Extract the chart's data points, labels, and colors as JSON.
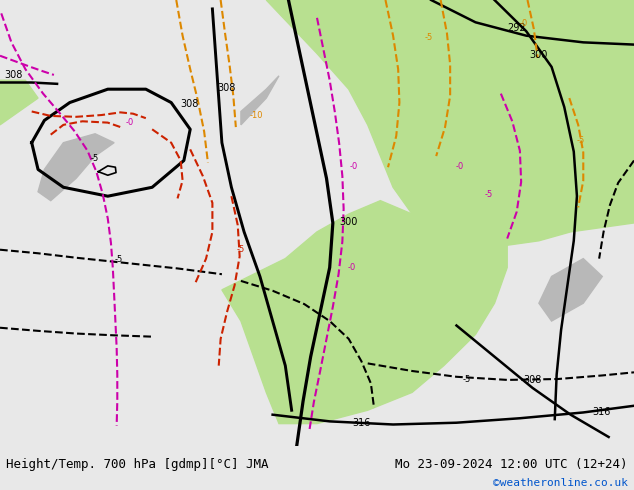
{
  "title_left": "Height/Temp. 700 hPa [gdmp][°C] JMA",
  "title_right": "Mo 23-09-2024 12:00 UTC (12+24)",
  "credit": "©weatheronline.co.uk",
  "bg_color": "#d8d8d8",
  "land_green": "#b8e090",
  "land_gray": "#b8b8b8",
  "figsize": [
    6.34,
    4.9
  ],
  "dpi": 100,
  "footer_color": "#e8e8e8",
  "black_lw": 1.8,
  "dashed_lw": 1.5,
  "label_fs": 7,
  "footer_fs": 9,
  "credit_fs": 8,
  "credit_color": "#0055cc",
  "red_color": "#cc2200",
  "orange_color": "#dd8800",
  "magenta_color": "#cc00aa",
  "black_color": "#000000"
}
